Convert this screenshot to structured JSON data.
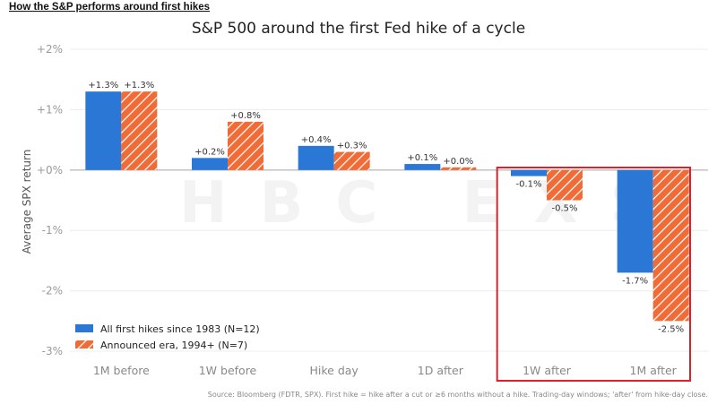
{
  "header": {
    "label": "How the S&P performs around first hikes"
  },
  "watermark": "HBC EXS",
  "source_note": "Source: Bloomberg (FDTR, SPX). First hike = hike after a cut or ≥6 months without a hike. Trading-day windows; 'after' from hike-day close.",
  "colors": {
    "series1": "#2a77d6",
    "series2": "#f06b36",
    "highlight": "#d9222a"
  },
  "chart_data": {
    "type": "bar",
    "title": "S&P 500 around the first Fed hike of a cycle",
    "ylabel": "Average SPX return",
    "ylim": [
      -3,
      2
    ],
    "yticks": [
      "+2%",
      "+1%",
      "+0%",
      "-1%",
      "-2%",
      "-3%"
    ],
    "categories": [
      "1M before",
      "1W before",
      "Hike day",
      "1D after",
      "1W after",
      "1M after"
    ],
    "series": [
      {
        "name": "All first hikes since 1983 (N=12)",
        "values": [
          1.3,
          0.2,
          0.4,
          0.1,
          -0.1,
          -1.7
        ],
        "labels": [
          "+1.3%",
          "+0.2%",
          "+0.4%",
          "+0.1%",
          "-0.1%",
          "-1.7%"
        ]
      },
      {
        "name": "Announced era, 1994+ (N=7)",
        "values": [
          1.3,
          0.8,
          0.3,
          0.0,
          -0.5,
          -2.5
        ],
        "labels": [
          "+1.3%",
          "+0.8%",
          "+0.3%",
          "+0.0%",
          "-0.5%",
          "-2.5%"
        ]
      }
    ],
    "highlighted_categories": [
      "1W after",
      "1M after"
    ],
    "legend": "lower-left",
    "grid": true
  }
}
